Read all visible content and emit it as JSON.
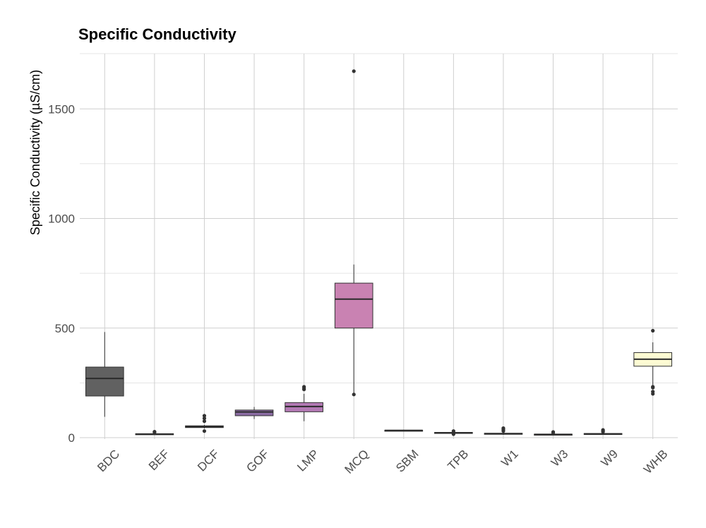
{
  "chart_data": {
    "type": "box",
    "title": "Specific Conductivity",
    "xlabel": "",
    "ylabel": "Specific Conductivity (µS/cm)",
    "ylim": [
      0,
      1750
    ],
    "yticks": [
      0,
      500,
      1000,
      1500
    ],
    "grid": true,
    "legend": "none",
    "categories": [
      "BDC",
      "BEF",
      "DCF",
      "GOF",
      "LMP",
      "MCQ",
      "SBM",
      "TPB",
      "W1",
      "W3",
      "W9",
      "WHB"
    ],
    "boxes": [
      {
        "label": "BDC",
        "min": 95,
        "q1": 190,
        "median": 270,
        "q3": 322,
        "max": 482,
        "outliers": [],
        "color": "#616161"
      },
      {
        "label": "BEF",
        "min": 12,
        "q1": 14,
        "median": 16,
        "q3": 18,
        "max": 20,
        "outliers": [
          24,
          27
        ],
        "color": "#5d4f6b"
      },
      {
        "label": "DCF",
        "min": 42,
        "q1": 46,
        "median": 50,
        "q3": 54,
        "max": 58,
        "outliers": [
          30,
          75,
          88,
          100
        ],
        "color": "#6d5a83"
      },
      {
        "label": "GOF",
        "min": 85,
        "q1": 100,
        "median": 117,
        "q3": 126,
        "max": 140,
        "outliers": [],
        "color": "#8b6ca3"
      },
      {
        "label": "LMP",
        "min": 75,
        "q1": 118,
        "median": 142,
        "q3": 160,
        "max": 200,
        "outliers": [
          220,
          226,
          232
        ],
        "color": "#b47ab5"
      },
      {
        "label": "MCQ",
        "min": 200,
        "q1": 500,
        "median": 632,
        "q3": 705,
        "max": 790,
        "outliers": [
          197,
          1672
        ],
        "color": "#c982b2"
      },
      {
        "label": "SBM",
        "min": 30,
        "q1": 31,
        "median": 33,
        "q3": 34,
        "max": 36,
        "outliers": [],
        "color": "#c5879f"
      },
      {
        "label": "TPB",
        "min": 18,
        "q1": 20,
        "median": 22,
        "q3": 24,
        "max": 26,
        "outliers": [
          16,
          30
        ],
        "color": "#d49a96"
      },
      {
        "label": "W1",
        "min": 13,
        "q1": 16,
        "median": 18,
        "q3": 20,
        "max": 24,
        "outliers": [
          30,
          37,
          43
        ],
        "color": "#d8a48e"
      },
      {
        "label": "W3",
        "min": 11,
        "q1": 13,
        "median": 15,
        "q3": 16,
        "max": 18,
        "outliers": [
          22,
          26
        ],
        "color": "#dfb98e"
      },
      {
        "label": "W9",
        "min": 13,
        "q1": 15,
        "median": 17,
        "q3": 19,
        "max": 22,
        "outliers": [
          27,
          31,
          35
        ],
        "color": "#e6d39e"
      },
      {
        "label": "WHB",
        "min": 240,
        "q1": 326,
        "median": 358,
        "q3": 388,
        "max": 435,
        "outliers": [
          200,
          210,
          228,
          232,
          488
        ],
        "color": "#fdfbd3"
      }
    ]
  }
}
